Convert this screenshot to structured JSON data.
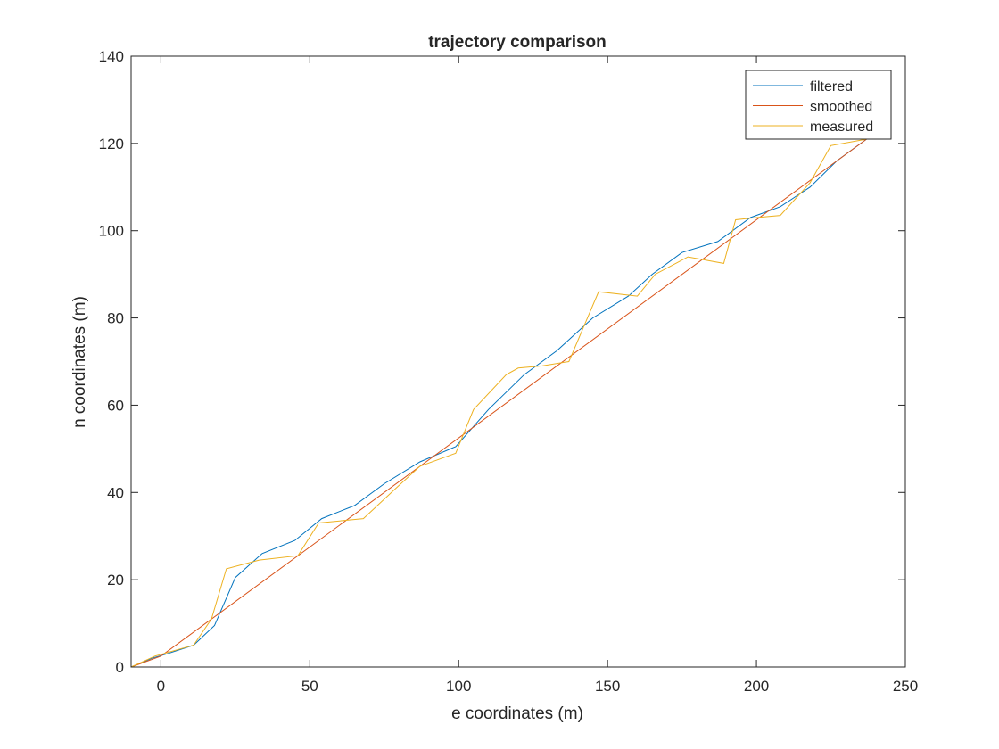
{
  "chart_data": {
    "type": "line",
    "title": "trajectory comparison",
    "xlabel": "e coordinates (m)",
    "ylabel": "n coordinates (m)",
    "xlim": [
      -10,
      250
    ],
    "ylim": [
      0,
      140
    ],
    "xticks": [
      0,
      50,
      100,
      150,
      200,
      250
    ],
    "yticks": [
      0,
      20,
      40,
      60,
      80,
      100,
      120,
      140
    ],
    "grid": false,
    "legend_position": "top-right",
    "series": [
      {
        "name": "filtered",
        "color": "#0072BD",
        "x": [
          -10,
          -3,
          2,
          11,
          18,
          25,
          34,
          45,
          54,
          65,
          75,
          87,
          99,
          110,
          122,
          133,
          145,
          157,
          165,
          175,
          187,
          198,
          208,
          218,
          227,
          237
        ],
        "y": [
          0,
          2,
          3,
          5,
          9.5,
          20.5,
          26,
          29,
          34,
          37,
          42,
          47,
          50.5,
          59,
          67,
          72.5,
          80,
          85,
          90,
          95,
          97.5,
          103,
          105.5,
          110,
          116,
          121
        ]
      },
      {
        "name": "smoothed",
        "color": "#D95319",
        "x": [
          -10,
          0,
          237
        ],
        "y": [
          0,
          2.5,
          121
        ]
      },
      {
        "name": "measured",
        "color": "#EDB120",
        "x": [
          -10,
          -2,
          11,
          17,
          22,
          33,
          46,
          53,
          68,
          79,
          87,
          99,
          105,
          116,
          120,
          128,
          137,
          147,
          160,
          166,
          177,
          189,
          193,
          200,
          208,
          218,
          225,
          237
        ],
        "y": [
          0,
          2.5,
          5,
          11,
          22.5,
          24.5,
          25.5,
          33,
          34,
          41,
          46,
          49,
          59,
          67,
          68.5,
          69,
          70,
          86,
          85,
          90,
          94,
          92.5,
          102.5,
          103,
          103.5,
          111,
          119.5,
          121
        ]
      }
    ]
  }
}
